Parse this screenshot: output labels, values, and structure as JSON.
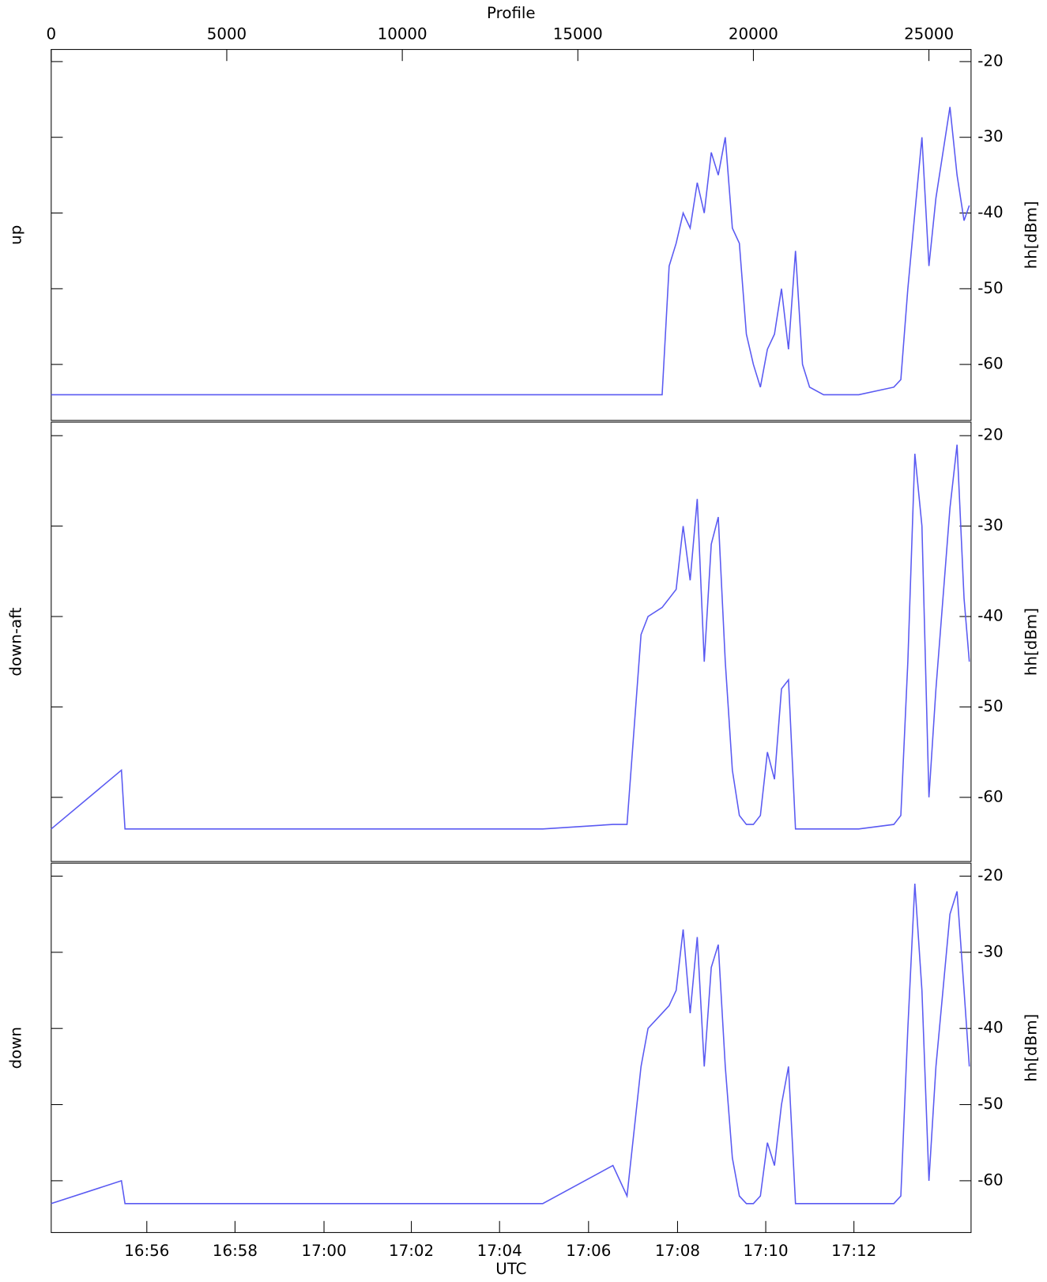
{
  "chart_data": [
    {
      "type": "line",
      "ylabel_left": "up",
      "ylabel": "hh[dBm]",
      "top_axis": {
        "label": "Profile",
        "xticks": [
          0,
          5000,
          10000,
          15000,
          20000,
          25000
        ]
      },
      "xlim": [
        0,
        26200
      ],
      "ylim": [
        -67.4,
        -18.4
      ],
      "yticks": [
        -20,
        -30,
        -40,
        -50,
        -60
      ],
      "color": "#5a5af2",
      "x": [
        0,
        2000,
        2100,
        4000,
        6000,
        8000,
        10000,
        12000,
        14000,
        16000,
        16400,
        16800,
        17000,
        17400,
        17600,
        17800,
        18000,
        18200,
        18400,
        18600,
        18800,
        19000,
        19200,
        19400,
        19600,
        19800,
        20000,
        20200,
        20400,
        20600,
        20800,
        21000,
        21200,
        21400,
        21600,
        22000,
        23000,
        24000,
        24200,
        24400,
        24600,
        24800,
        25000,
        25200,
        25400,
        25600,
        25800,
        26000,
        26150
      ],
      "values": [
        -64,
        -64,
        -64,
        -64,
        -64,
        -64,
        -64,
        -64,
        -64,
        -64,
        -64,
        -64,
        -64,
        -64,
        -47,
        -44,
        -40,
        -42,
        -36,
        -40,
        -32,
        -35,
        -30,
        -42,
        -44,
        -56,
        -60,
        -63,
        -58,
        -56,
        -50,
        -58,
        -45,
        -60,
        -63,
        -64,
        -64,
        -63,
        -62,
        -50,
        -40,
        -30,
        -47,
        -38,
        -32,
        -26,
        -35,
        -41,
        -39
      ]
    },
    {
      "type": "line",
      "ylabel_left": "down-aft",
      "ylabel": "hh[dBm]",
      "xlim": [
        0,
        26200
      ],
      "ylim": [
        -67.1,
        -18.5
      ],
      "yticks": [
        -20,
        -30,
        -40,
        -50,
        -60
      ],
      "color": "#5a5af2",
      "x": [
        0,
        2000,
        2100,
        4000,
        6000,
        8000,
        10000,
        12000,
        14000,
        16000,
        16400,
        16800,
        17000,
        17400,
        17600,
        17800,
        18000,
        18200,
        18400,
        18600,
        18800,
        19000,
        19200,
        19400,
        19600,
        19800,
        20000,
        20200,
        20400,
        20600,
        20800,
        21000,
        21200,
        21400,
        21600,
        22000,
        23000,
        24000,
        24200,
        24400,
        24600,
        24800,
        25000,
        25200,
        25400,
        25600,
        25800,
        26000,
        26150
      ],
      "values": [
        -63.5,
        -57,
        -63.5,
        -63.5,
        -63.5,
        -63.5,
        -63.5,
        -63.5,
        -63.5,
        -63,
        -63,
        -42,
        -40,
        -39,
        -38,
        -37,
        -30,
        -36,
        -27,
        -45,
        -32,
        -29,
        -45,
        -57,
        -62,
        -63,
        -63,
        -62,
        -55,
        -58,
        -48,
        -47,
        -63.5,
        -63.5,
        -63.5,
        -63.5,
        -63.5,
        -63,
        -62,
        -45,
        -22,
        -30,
        -60,
        -48,
        -38,
        -28,
        -21,
        -38,
        -45
      ]
    },
    {
      "type": "line",
      "ylabel_left": "down",
      "ylabel": "hh[dBm]",
      "xlabel": "UTC",
      "xlim": [
        0,
        26200
      ],
      "ylim": [
        -66.8,
        -18.3
      ],
      "yticks": [
        -20,
        -30,
        -40,
        -50,
        -60
      ],
      "color": "#5a5af2",
      "xticks": [
        {
          "value": 2723,
          "label": "16:56"
        },
        {
          "value": 5235,
          "label": "16:58"
        },
        {
          "value": 7770,
          "label": "17:00"
        },
        {
          "value": 10258,
          "label": "17:02"
        },
        {
          "value": 12770,
          "label": "17:04"
        },
        {
          "value": 15305,
          "label": "17:06"
        },
        {
          "value": 17840,
          "label": "17:08"
        },
        {
          "value": 20352,
          "label": "17:10"
        },
        {
          "value": 22864,
          "label": "17:12"
        }
      ],
      "x": [
        0,
        2000,
        2100,
        4000,
        6000,
        8000,
        10000,
        12000,
        14000,
        16000,
        16400,
        16800,
        17000,
        17400,
        17600,
        17800,
        18000,
        18200,
        18400,
        18600,
        18800,
        19000,
        19200,
        19400,
        19600,
        19800,
        20000,
        20200,
        20400,
        20600,
        20800,
        21000,
        21200,
        21400,
        21600,
        22000,
        23000,
        24000,
        24200,
        24400,
        24600,
        24800,
        25000,
        25200,
        25400,
        25600,
        25800,
        26000,
        26150
      ],
      "values": [
        -63,
        -60,
        -63,
        -63,
        -63,
        -63,
        -63,
        -63,
        -63,
        -58,
        -62,
        -45,
        -40,
        -38,
        -37,
        -35,
        -27,
        -38,
        -28,
        -45,
        -32,
        -29,
        -45,
        -57,
        -62,
        -63,
        -63,
        -62,
        -55,
        -58,
        -50,
        -45,
        -63,
        -63,
        -63,
        -63,
        -63,
        -63,
        -62,
        -40,
        -21,
        -35,
        -60,
        -45,
        -35,
        -25,
        -22,
        -35,
        -45
      ]
    }
  ]
}
